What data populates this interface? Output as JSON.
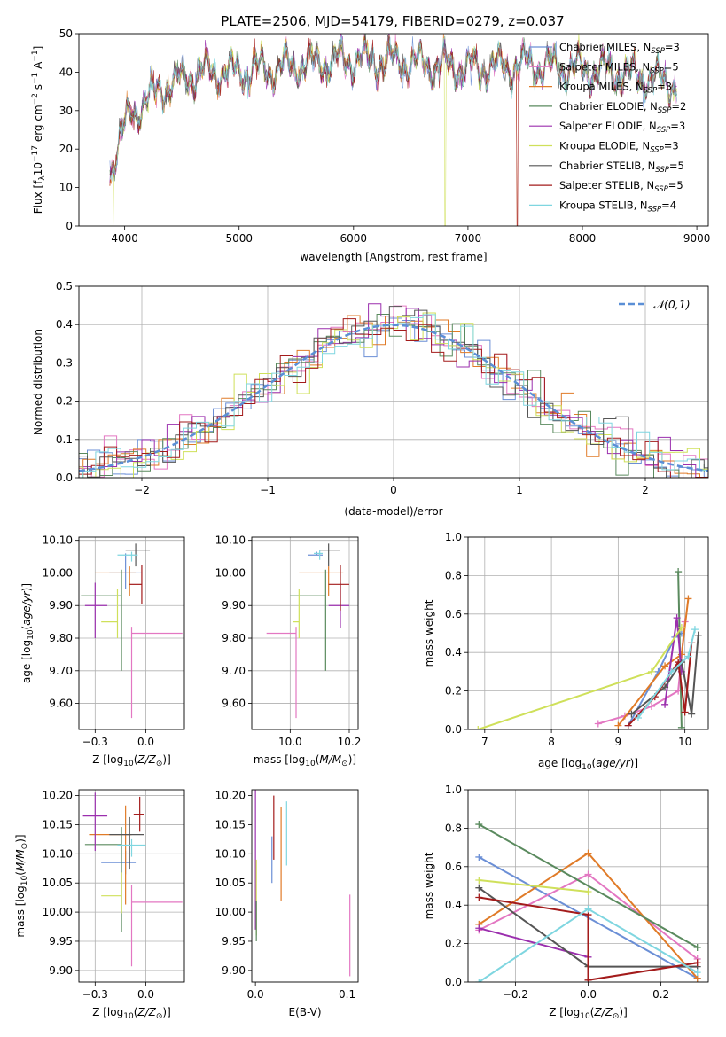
{
  "title": "PLATE=2506, MJD=54179, FIBERID=0279, z=0.037",
  "series_colors": [
    "#6b8fd6",
    "#e377c2",
    "#e07b28",
    "#5a8a5e",
    "#9b2fae",
    "#cfe05a",
    "#555555",
    "#a31b1b",
    "#7fd6e0"
  ],
  "legend_entries": [
    {
      "pre": "Chabrier MILES, N",
      "sub": "SSP",
      "post": "=3",
      "color": "#6b8fd6"
    },
    {
      "pre": "Salpeter MILES, N",
      "sub": "SSP",
      "post": "=5",
      "color": "#e377c2"
    },
    {
      "pre": "Kroupa MILES, N",
      "sub": "SSP",
      "post": "=3",
      "color": "#e07b28"
    },
    {
      "pre": "Chabrier ELODIE, N",
      "sub": "SSP",
      "post": "=2",
      "color": "#5a8a5e"
    },
    {
      "pre": "Salpeter ELODIE, N",
      "sub": "SSP",
      "post": "=3",
      "color": "#9b2fae"
    },
    {
      "pre": "Kroupa ELODIE, N",
      "sub": "SSP",
      "post": "=3",
      "color": "#cfe05a"
    },
    {
      "pre": "Chabrier STELIB, N",
      "sub": "SSP",
      "post": "=5",
      "color": "#555555"
    },
    {
      "pre": "Salpeter STELIB, N",
      "sub": "SSP",
      "post": "=5",
      "color": "#a31b1b"
    },
    {
      "pre": "Kroupa STELIB, N",
      "sub": "SSP",
      "post": "=4",
      "color": "#7fd6e0"
    }
  ],
  "chart_data": [
    {
      "id": "spectrum",
      "type": "line",
      "xlabel": "wavelength [Angstrom, rest frame]",
      "ylabel": "Flux [f",
      "xlim": [
        3600,
        9100
      ],
      "ylim": [
        0,
        50
      ],
      "xticks": [
        4000,
        5000,
        6000,
        7000,
        8000,
        9000
      ],
      "yticks": [
        0,
        10,
        20,
        30,
        40,
        50
      ],
      "x_range": [
        3870,
        8830
      ],
      "continuum": [
        [
          3870,
          14
        ],
        [
          3950,
          22
        ],
        [
          4050,
          29
        ],
        [
          4200,
          33
        ],
        [
          4400,
          37
        ],
        [
          4700,
          40
        ],
        [
          5000,
          40
        ],
        [
          5300,
          41
        ],
        [
          5600,
          42
        ],
        [
          5900,
          43
        ],
        [
          6300,
          43
        ],
        [
          6700,
          42
        ],
        [
          7100,
          41
        ],
        [
          7500,
          42
        ],
        [
          7900,
          41
        ],
        [
          8300,
          40
        ],
        [
          8830,
          37
        ]
      ],
      "grid": false
    },
    {
      "id": "residuals",
      "type": "histogram",
      "xlabel": "(data-model)/error",
      "ylabel": "Normed distribution",
      "xlim": [
        -2.5,
        2.5
      ],
      "ylim": [
        0,
        0.5
      ],
      "xticks": [
        -2,
        -1,
        0,
        1,
        2
      ],
      "yticks": [
        0.0,
        0.1,
        0.2,
        0.3,
        0.4,
        0.5
      ],
      "legend": "𝒩(0,1)",
      "legend_position": "top-right",
      "grid": true
    },
    {
      "id": "age-vs-Z",
      "type": "scatter",
      "xlabel": "Z [log",
      "ylabel": "age  [log",
      "xlim": [
        -0.33,
        0.19
      ],
      "ylim": [
        9.52,
        10.11
      ],
      "xticks": [
        -0.25,
        0.0
      ],
      "yticks": [
        9.6,
        9.7,
        9.8,
        9.9,
        10.0,
        10.1
      ],
      "grid": true,
      "points": [
        {
          "x": -0.1,
          "xerr": [
            0.08,
            0.08
          ],
          "y": 10.0,
          "yerr": [
            0.05,
            0.06
          ],
          "s": 0
        },
        {
          "x": -0.07,
          "xerr": [
            0.0,
            0.25
          ],
          "y": 9.815,
          "yerr": [
            0.26,
            0.02
          ],
          "s": 1
        },
        {
          "x": -0.08,
          "xerr": [
            0.17,
            0.03
          ],
          "y": 10.0,
          "yerr": [
            0.07,
            0.02
          ],
          "s": 2
        },
        {
          "x": -0.12,
          "xerr": [
            0.2,
            0.0
          ],
          "y": 9.93,
          "yerr": [
            0.23,
            0.08
          ],
          "s": 3
        },
        {
          "x": -0.25,
          "xerr": [
            0.05,
            0.06
          ],
          "y": 9.9,
          "yerr": [
            0.1,
            0.07
          ],
          "s": 4
        },
        {
          "x": -0.14,
          "xerr": [
            0.08,
            0.0
          ],
          "y": 9.85,
          "yerr": [
            0.05,
            0.1
          ],
          "s": 5
        },
        {
          "x": -0.05,
          "xerr": [
            0.05,
            0.07
          ],
          "y": 10.07,
          "yerr": [
            0.05,
            0.02
          ],
          "s": 6
        },
        {
          "x": -0.02,
          "xerr": [
            0.06,
            0.0
          ],
          "y": 9.965,
          "yerr": [
            0.06,
            0.06
          ],
          "s": 7
        },
        {
          "x": -0.07,
          "xerr": [
            0.07,
            0.03
          ],
          "y": 10.055,
          "yerr": [
            0.02,
            0.01
          ],
          "s": 8
        }
      ]
    },
    {
      "id": "age-vs-mass",
      "type": "scatter",
      "xlabel": "mass [log",
      "xlim": [
        9.87,
        10.23
      ],
      "ylim": [
        9.52,
        10.11
      ],
      "xticks": [
        10.0,
        10.2
      ],
      "yticks": [
        9.6,
        9.7,
        9.8,
        9.9,
        10.0,
        10.1
      ],
      "grid": true,
      "points": [
        {
          "x": 10.09,
          "xerr": [
            0.03,
            0.02
          ],
          "y": 10.055,
          "yerr": [
            0.0,
            0.01
          ],
          "s": 0
        },
        {
          "x": 10.02,
          "xerr": [
            0.1,
            0.0
          ],
          "y": 9.815,
          "yerr": [
            0.26,
            0.02
          ],
          "s": 1
        },
        {
          "x": 10.13,
          "xerr": [
            0.1,
            0.05
          ],
          "y": 10.0,
          "yerr": [
            0.07,
            0.02
          ],
          "s": 2
        },
        {
          "x": 10.12,
          "xerr": [
            0.12,
            0.0
          ],
          "y": 9.93,
          "yerr": [
            0.23,
            0.08
          ],
          "s": 3
        },
        {
          "x": 10.17,
          "xerr": [
            0.04,
            0.03
          ],
          "y": 9.9,
          "yerr": [
            0.07,
            0.07
          ],
          "s": 4
        },
        {
          "x": 10.03,
          "xerr": [
            0.02,
            0.0
          ],
          "y": 9.85,
          "yerr": [
            0.05,
            0.1
          ],
          "s": 5
        },
        {
          "x": 10.13,
          "xerr": [
            0.03,
            0.04
          ],
          "y": 10.07,
          "yerr": [
            0.05,
            0.02
          ],
          "s": 6
        },
        {
          "x": 10.17,
          "xerr": [
            0.04,
            0.03
          ],
          "y": 9.965,
          "yerr": [
            0.08,
            0.06
          ],
          "s": 7
        },
        {
          "x": 10.1,
          "xerr": [
            0.02,
            0.01
          ],
          "y": 10.06,
          "yerr": [
            0.02,
            0.01
          ],
          "s": 8
        }
      ]
    },
    {
      "id": "weight-vs-age",
      "type": "line",
      "xlabel": "age  [log",
      "ylabel": "mass weight",
      "xlim": [
        6.75,
        10.35
      ],
      "ylim": [
        0,
        1
      ],
      "xticks": [
        7,
        8,
        9,
        10
      ],
      "yticks": [
        0.0,
        0.2,
        0.4,
        0.6,
        0.8,
        1.0
      ],
      "grid": true,
      "series": [
        {
          "s": 0,
          "x": [
            9.15,
            9.6,
            9.85,
            9.95
          ],
          "y": [
            0.02,
            0.3,
            0.48,
            0.5
          ]
        },
        {
          "s": 1,
          "x": [
            8.7,
            9.1,
            9.5,
            9.9,
            10.0
          ],
          "y": [
            0.03,
            0.07,
            0.12,
            0.2,
            0.56
          ]
        },
        {
          "s": 2,
          "x": [
            9.0,
            9.7,
            9.95,
            10.05
          ],
          "y": [
            0.02,
            0.33,
            0.39,
            0.68
          ]
        },
        {
          "s": 3,
          "x": [
            9.9,
            9.95
          ],
          "y": [
            0.82,
            0.01
          ]
        },
        {
          "s": 4,
          "x": [
            9.7,
            9.88,
            9.95
          ],
          "y": [
            0.13,
            0.58,
            0.3
          ]
        },
        {
          "s": 5,
          "x": [
            6.9,
            9.5,
            9.95
          ],
          "y": [
            0.0,
            0.3,
            0.53
          ]
        },
        {
          "s": 6,
          "x": [
            9.2,
            9.7,
            9.95,
            10.1,
            10.2
          ],
          "y": [
            0.08,
            0.22,
            0.35,
            0.08,
            0.49
          ]
        },
        {
          "s": 7,
          "x": [
            9.15,
            9.55,
            9.9,
            10.0,
            10.1
          ],
          "y": [
            0.02,
            0.17,
            0.35,
            0.09,
            0.45
          ]
        },
        {
          "s": 8,
          "x": [
            9.3,
            9.8,
            10.05,
            10.15
          ],
          "y": [
            0.06,
            0.3,
            0.38,
            0.52
          ]
        }
      ]
    },
    {
      "id": "mass-vs-Z",
      "type": "scatter",
      "xlabel": "Z [log",
      "ylabel": "mass [log",
      "xlim": [
        -0.33,
        0.19
      ],
      "ylim": [
        9.88,
        10.21
      ],
      "xticks": [
        -0.25,
        0.0
      ],
      "yticks": [
        9.9,
        9.95,
        10.0,
        10.05,
        10.1,
        10.15,
        10.2
      ],
      "grid": true,
      "points": [
        {
          "x": -0.1,
          "xerr": [
            0.12,
            0.05
          ],
          "y": 10.085,
          "yerr": [
            0.02,
            0.02
          ],
          "s": 0
        },
        {
          "x": -0.07,
          "xerr": [
            0.0,
            0.25
          ],
          "y": 10.017,
          "yerr": [
            0.11,
            0.03
          ],
          "s": 1
        },
        {
          "x": -0.1,
          "xerr": [
            0.18,
            0.03
          ],
          "y": 10.133,
          "yerr": [
            0.12,
            0.05
          ],
          "s": 2
        },
        {
          "x": -0.12,
          "xerr": [
            0.18,
            0.0
          ],
          "y": 10.116,
          "yerr": [
            0.15,
            0.03
          ],
          "s": 3
        },
        {
          "x": -0.25,
          "xerr": [
            0.06,
            0.06
          ],
          "y": 10.165,
          "yerr": [
            0.06,
            0.04
          ],
          "s": 4
        },
        {
          "x": -0.12,
          "xerr": [
            0.1,
            0.0
          ],
          "y": 10.028,
          "yerr": [
            0.03,
            0.04
          ],
          "s": 5
        },
        {
          "x": -0.08,
          "xerr": [
            0.1,
            0.07
          ],
          "y": 10.133,
          "yerr": [
            0.06,
            0.03
          ],
          "s": 6
        },
        {
          "x": -0.03,
          "xerr": [
            0.03,
            0.02
          ],
          "y": 10.168,
          "yerr": [
            0.03,
            0.03
          ],
          "s": 7
        },
        {
          "x": -0.07,
          "xerr": [
            0.07,
            0.07
          ],
          "y": 10.115,
          "yerr": [
            0.02,
            0.01
          ],
          "s": 8
        }
      ]
    },
    {
      "id": "mass-vs-ebv",
      "type": "scatter",
      "xlabel": "E(B-V)",
      "xlim": [
        -0.004,
        0.112
      ],
      "ylim": [
        9.88,
        10.21
      ],
      "xticks": [
        0.0,
        0.1
      ],
      "yticks": [
        9.9,
        9.95,
        10.0,
        10.05,
        10.1,
        10.15,
        10.2
      ],
      "grid": false,
      "points": [
        {
          "x": 0.0,
          "y": 10.09,
          "yerr": [
            0.12,
            0.12
          ],
          "s": 4
        },
        {
          "x": 0.001,
          "y": 10.03,
          "yerr": [
            0.07,
            0.06
          ],
          "s": 5
        },
        {
          "x": 0.001,
          "y": 10.0,
          "yerr": [
            0.05,
            0.02
          ],
          "s": 3
        },
        {
          "x": 0.02,
          "y": 10.13,
          "yerr": [
            0.04,
            0.07
          ],
          "s": 7
        },
        {
          "x": 0.028,
          "y": 10.1,
          "yerr": [
            0.08,
            0.08
          ],
          "s": 2
        },
        {
          "x": 0.034,
          "y": 10.12,
          "yerr": [
            0.04,
            0.07
          ],
          "s": 8
        },
        {
          "x": 0.018,
          "y": 10.09,
          "yerr": [
            0.04,
            0.04
          ],
          "s": 0
        },
        {
          "x": 0.103,
          "y": 9.96,
          "yerr": [
            0.07,
            0.07
          ],
          "s": 1
        }
      ]
    },
    {
      "id": "weight-vs-Z",
      "type": "line",
      "xlabel": "Z [log",
      "ylabel": "mass weight",
      "xlim": [
        -0.33,
        0.33
      ],
      "ylim": [
        0,
        1
      ],
      "xticks": [
        -0.2,
        0.0,
        0.2
      ],
      "yticks": [
        0.0,
        0.2,
        0.4,
        0.6,
        0.8,
        1.0
      ],
      "grid": true,
      "series": [
        {
          "s": 0,
          "x": [
            -0.3,
            0.3
          ],
          "y": [
            0.65,
            0.02
          ]
        },
        {
          "s": 1,
          "x": [
            -0.3,
            0.0,
            0.3
          ],
          "y": [
            0.27,
            0.56,
            0.12
          ]
        },
        {
          "s": 2,
          "x": [
            -0.3,
            0.0,
            0.3
          ],
          "y": [
            0.3,
            0.67,
            0.02
          ]
        },
        {
          "s": 3,
          "x": [
            -0.3,
            0.3
          ],
          "y": [
            0.82,
            0.18
          ]
        },
        {
          "s": 4,
          "x": [
            -0.3,
            0.0
          ],
          "y": [
            0.28,
            0.13
          ]
        },
        {
          "s": 5,
          "x": [
            -0.3,
            0.0
          ],
          "y": [
            0.53,
            0.47
          ]
        },
        {
          "s": 6,
          "x": [
            -0.3,
            0.0,
            0.3
          ],
          "y": [
            0.49,
            0.08,
            0.08
          ]
        },
        {
          "s": 7,
          "x": [
            -0.3,
            0.0,
            0.0,
            0.3
          ],
          "y": [
            0.44,
            0.35,
            0.01,
            0.1
          ]
        },
        {
          "s": 8,
          "x": [
            -0.3,
            0.0,
            0.3
          ],
          "y": [
            0.0,
            0.38,
            0.05
          ]
        }
      ]
    }
  ]
}
